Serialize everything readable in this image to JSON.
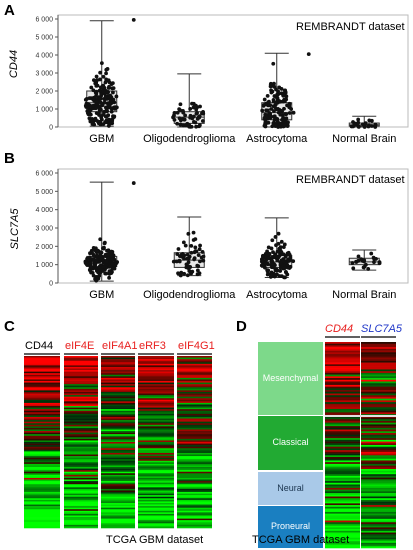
{
  "panels": {
    "a_letter": "A",
    "b_letter": "B",
    "c_letter": "C",
    "d_letter": "D"
  },
  "chart_data": [
    {
      "type": "box",
      "panel": "A",
      "annotation": "REMBRANDT dataset",
      "ylabel": "CD44",
      "ylim": [
        0,
        6000
      ],
      "yticks": [
        "0",
        "1 000",
        "2 000",
        "3 000",
        "4 000",
        "5 000",
        "6 000"
      ],
      "categories": [
        "GBM",
        "Oligodendroglioma",
        "Astrocytoma",
        "Normal Brain"
      ],
      "boxes": [
        {
          "min": 50,
          "q1": 850,
          "median": 1350,
          "q3": 2000,
          "max": 5900,
          "n": 180,
          "outliers": [
            5950
          ]
        },
        {
          "min": 0,
          "q1": 200,
          "median": 550,
          "q3": 850,
          "max": 2950,
          "n": 60,
          "outliers": []
        },
        {
          "min": 0,
          "q1": 400,
          "median": 800,
          "q3": 1350,
          "max": 4100,
          "n": 140,
          "outliers": [
            4050
          ]
        },
        {
          "min": 0,
          "q1": 50,
          "median": 120,
          "q3": 220,
          "max": 600,
          "n": 22,
          "outliers": []
        }
      ]
    },
    {
      "type": "box",
      "panel": "B",
      "annotation": "REMBRANDT dataset",
      "ylabel": "SLC7A5",
      "ylim": [
        0,
        6000
      ],
      "yticks": [
        "0",
        "1 000",
        "2 000",
        "3 000",
        "4 000",
        "5 000",
        "6 000"
      ],
      "categories": [
        "GBM",
        "Oligodendroglioma",
        "Astrocytoma",
        "Normal Brain"
      ],
      "boxes": [
        {
          "min": 100,
          "q1": 900,
          "median": 1150,
          "q3": 1450,
          "max": 5500,
          "n": 180,
          "outliers": [
            5450
          ]
        },
        {
          "min": 400,
          "q1": 850,
          "median": 1250,
          "q3": 1650,
          "max": 3600,
          "n": 60,
          "outliers": []
        },
        {
          "min": 300,
          "q1": 850,
          "median": 1150,
          "q3": 1500,
          "max": 3550,
          "n": 140,
          "outliers": []
        },
        {
          "min": 700,
          "q1": 1000,
          "median": 1150,
          "q3": 1350,
          "max": 1800,
          "n": 22,
          "outliers": []
        }
      ]
    },
    {
      "type": "heatmap",
      "panel": "C",
      "columns": [
        "CD44",
        "eIF4E",
        "eIF4A1",
        "eRF3",
        "eIF4G1"
      ],
      "column_colors": [
        "#000000",
        "#e8201f",
        "#e8201f",
        "#e8201f",
        "#e8201f"
      ],
      "caption": "TCGA GBM dataset"
    },
    {
      "type": "heatmap",
      "panel": "D",
      "columns": [
        "CD44",
        "SLC7A5"
      ],
      "column_colors": [
        "#e8201f",
        "#1f36c8"
      ],
      "subtypes": [
        {
          "name": "Mesenchymal",
          "color": "#7dd98a"
        },
        {
          "name": "Classical",
          "color": "#22aa33"
        },
        {
          "name": "Neural",
          "color": "#a9c9e8"
        },
        {
          "name": "Proneural",
          "color": "#1a7fc1"
        }
      ],
      "caption": "TCGA GBM dataset"
    }
  ]
}
